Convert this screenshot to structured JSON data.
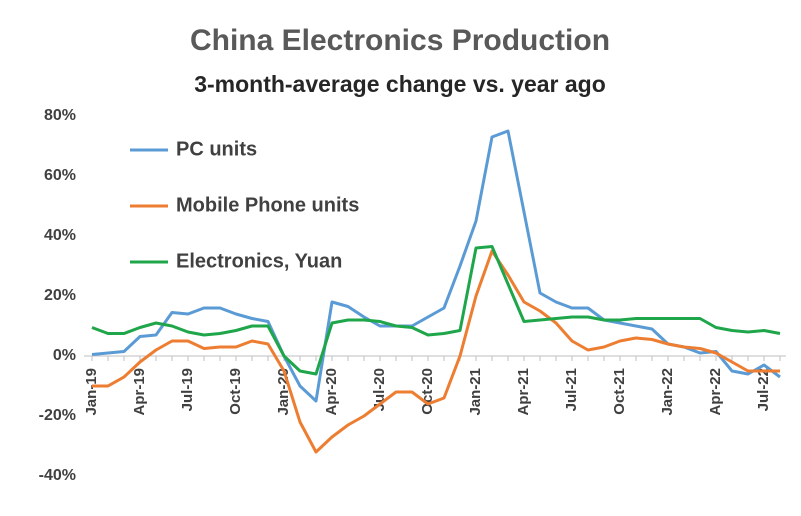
{
  "chart_data": {
    "type": "line",
    "title": "China Electronics Production",
    "subtitle": "3-month-average change vs. year ago",
    "categories": [
      "Jan-19",
      null,
      null,
      "Apr-19",
      null,
      null,
      "Jul-19",
      null,
      null,
      "Oct-19",
      null,
      null,
      "Jan-20",
      null,
      null,
      "Apr-20",
      null,
      null,
      "Jul-20",
      null,
      null,
      "Oct-20",
      null,
      null,
      "Jan-21",
      null,
      null,
      "Apr-21",
      null,
      null,
      "Jul-21",
      null,
      null,
      "Oct-21",
      null,
      null,
      "Jan-22",
      null,
      null,
      "Apr-22",
      null,
      null,
      "Jul-22",
      null
    ],
    "series": [
      {
        "name": "PC units",
        "color": "#5b9bd5",
        "values": [
          0.5,
          1,
          1.5,
          6.5,
          7,
          14.5,
          14,
          16,
          16,
          14,
          12.5,
          11.5,
          0,
          -10,
          -15,
          18,
          16.5,
          13,
          10,
          10,
          10,
          13,
          16,
          30,
          45,
          73,
          75,
          48,
          21,
          18,
          16,
          16,
          12,
          11,
          10,
          9,
          4,
          3,
          1,
          1.5,
          -5,
          -6,
          -3,
          -7
        ]
      },
      {
        "name": "Mobile Phone units",
        "color": "#ed7d31",
        "values": [
          -10,
          -10,
          -7,
          -2,
          2,
          5,
          5,
          2.5,
          3,
          3,
          5,
          4,
          -5,
          -22,
          -32,
          -27,
          -23,
          -20,
          -16,
          -12,
          -12,
          -16,
          -14,
          0,
          20,
          35,
          27,
          18,
          15,
          11,
          5,
          2,
          3,
          5,
          6,
          5.5,
          4,
          3,
          2.5,
          1,
          -2,
          -5,
          -5,
          -5
        ]
      },
      {
        "name": "Electronics, Yuan",
        "color": "#1fa64a",
        "values": [
          9.5,
          7.5,
          7.5,
          9.5,
          11,
          10,
          8,
          7,
          7.5,
          8.5,
          10,
          10,
          0,
          -5,
          -6,
          11,
          12,
          12,
          11.5,
          10,
          9.5,
          7,
          7.5,
          8.5,
          36,
          36.5,
          24,
          11.5,
          12,
          12.5,
          13,
          13,
          12,
          12,
          12.5,
          12.5,
          12.5,
          12.5,
          12.5,
          9.5,
          8.5,
          8,
          8.5,
          7.5
        ]
      }
    ],
    "ylim": [
      -40,
      80
    ],
    "yticks": [
      {
        "value": -40,
        "label": "-40%"
      },
      {
        "value": -20,
        "label": "-20%"
      },
      {
        "value": 0,
        "label": "0%"
      },
      {
        "value": 20,
        "label": "20%"
      },
      {
        "value": 40,
        "label": "40%"
      },
      {
        "value": 60,
        "label": "60%"
      },
      {
        "value": 80,
        "label": "80%"
      }
    ],
    "grid": false,
    "legend": "upper left"
  }
}
